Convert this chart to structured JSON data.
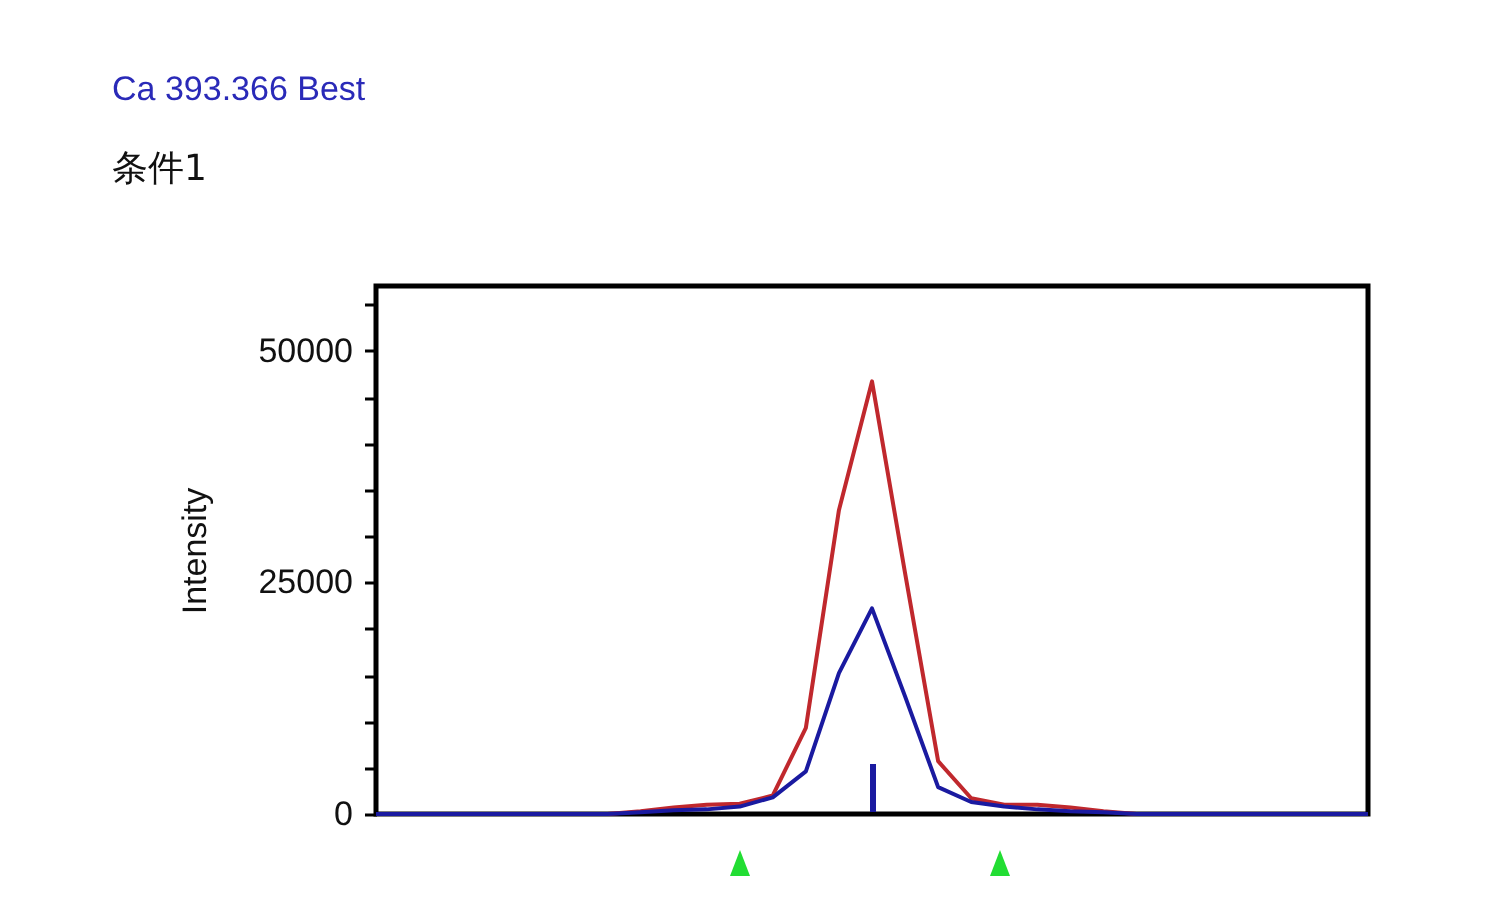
{
  "chart_data": {
    "type": "line",
    "title": "Ca 393.366 Best",
    "subtitle": "条件1",
    "ylabel": "Intensity",
    "categories": [
      null,
      null,
      null,
      null,
      null,
      null,
      null,
      null,
      null,
      null,
      null,
      null,
      null,
      null,
      null,
      null,
      null,
      null,
      null,
      null,
      null,
      null,
      null,
      null,
      null,
      null,
      null,
      null,
      null,
      null,
      null
    ],
    "series": [
      {
        "color": "#c0282d",
        "values": [
          null,
          null,
          null,
          null,
          null,
          null,
          0,
          0,
          300,
          700,
          1000,
          1100,
          2000,
          9300,
          32800,
          46700,
          26000,
          5700,
          1700,
          1000,
          1000,
          700,
          300,
          0,
          0,
          null,
          null,
          null,
          null,
          null,
          null
        ]
      },
      {
        "color": "#1a1aa0",
        "values": [
          0,
          0,
          0,
          0,
          0,
          0,
          0,
          0,
          200,
          400,
          500,
          800,
          1800,
          4600,
          15200,
          22200,
          12700,
          2900,
          1300,
          800,
          500,
          300,
          200,
          0,
          0,
          0,
          0,
          0,
          0,
          0,
          0
        ]
      }
    ],
    "ylim": [
      0,
      57000
    ],
    "yticks": [
      0,
      {
        "value": 5000,
        "label": null
      },
      {
        "value": 10000,
        "label": null
      },
      {
        "value": 15000,
        "label": null
      },
      {
        "value": 20000,
        "label": null
      },
      25000,
      {
        "value": 30000,
        "label": null
      },
      {
        "value": 35000,
        "label": null
      },
      {
        "value": 40000,
        "label": null
      },
      {
        "value": 45000,
        "label": null
      },
      50000,
      {
        "value": 55000,
        "label": null
      }
    ],
    "line_style": "solid"
  }
}
